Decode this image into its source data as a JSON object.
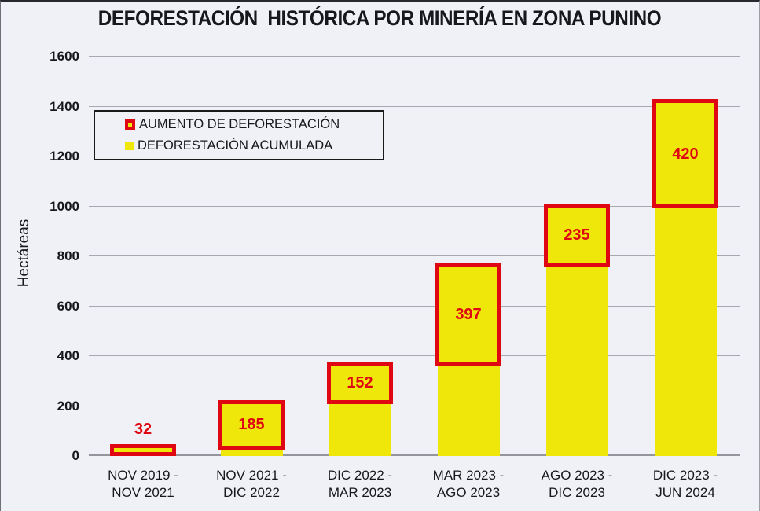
{
  "title": "DEFORESTACIÓN  HISTÓRICA POR MINERÍA EN ZONA PUNINO",
  "colors": {
    "background": "#EFF1F6",
    "bar_yellow": "#F0E70A",
    "increase_red": "#DE0712",
    "gridline": "#A6A9AF",
    "text": "#16181B"
  },
  "legend": {
    "items": [
      {
        "label": "AUMENTO DE DEFORESTACIÓN",
        "swatch": "increase"
      },
      {
        "label": "DEFORESTACIÓN ACUMULADA",
        "swatch": "accumulated"
      }
    ]
  },
  "chart_data": {
    "type": "bar",
    "stacked": true,
    "title": "DEFORESTACIÓN  HISTÓRICA POR MINERÍA EN ZONA PUNINO",
    "ylabel": "Hectáreas",
    "xlabel": "",
    "ylim": [
      0,
      1600
    ],
    "ytick_step": 200,
    "grid": true,
    "legend_position": "upper-left",
    "categories": [
      [
        "NOV 2019 -",
        "NOV 2021"
      ],
      [
        "NOV 2021 -",
        "DIC 2022"
      ],
      [
        "DIC 2022 -",
        "MAR 2023"
      ],
      [
        "MAR 2023 -",
        "AGO 2023"
      ],
      [
        "AGO 2023 -",
        "DIC 2023"
      ],
      [
        "DIC 2023 -",
        "JUN 2024"
      ]
    ],
    "series": [
      {
        "name": "DEFORESTACIÓN ACUMULADA",
        "role": "accumulated",
        "values": [
          0,
          32,
          217,
          369,
          766,
          1001
        ]
      },
      {
        "name": "AUMENTO DE DEFORESTACIÓN",
        "role": "increase",
        "values": [
          32,
          185,
          152,
          397,
          235,
          420
        ]
      }
    ],
    "bar_labels": [
      "32",
      "185",
      "152",
      "397",
      "235",
      "420"
    ],
    "cumulative_totals": [
      32,
      217,
      369,
      766,
      1001,
      1421
    ]
  }
}
